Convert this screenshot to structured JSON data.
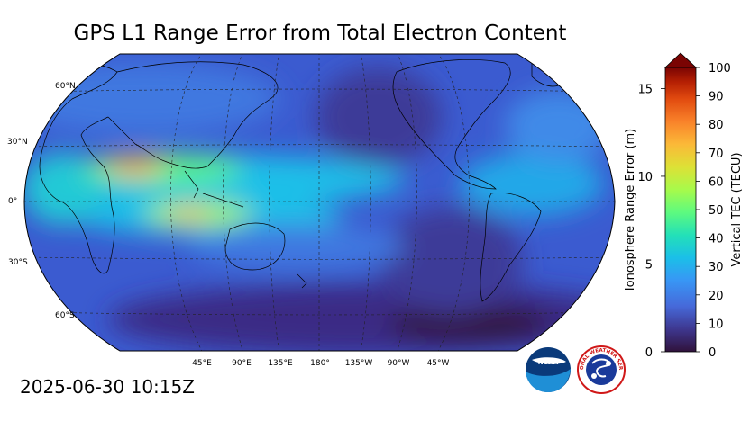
{
  "title": "GPS L1 Range Error from Total Electron Content",
  "timestamp": "2025-06-30 10:15Z",
  "lat_labels": [
    "60°N",
    "30°N",
    "0°",
    "30°S",
    "60°S"
  ],
  "lon_labels": [
    "45°E",
    "90°E",
    "135°E",
    "180°",
    "135°W",
    "90°W",
    "45°W"
  ],
  "colorbar": {
    "tec_label": "Vertical TEC (TECU)",
    "range_label": "Ionosphere Range Error (m)",
    "tec_ticks": [
      "0",
      "10",
      "20",
      "30",
      "40",
      "50",
      "60",
      "70",
      "80",
      "90",
      "100"
    ],
    "range_ticks": [
      "0",
      "5",
      "10",
      "15"
    ],
    "tec_max": 100,
    "range_max": 16.2,
    "colors": [
      "#30123b",
      "#3e378f",
      "#4669d9",
      "#3896f5",
      "#1bbfe8",
      "#23e0b8",
      "#5dfa7f",
      "#a7fa4b",
      "#dde136",
      "#fbb938",
      "#f9822a",
      "#e14a0f",
      "#b41f03",
      "#7a0403"
    ]
  },
  "logos": {
    "noaa_text": "NOAA",
    "nws_text": "NATIONAL WEATHER SERVICE"
  }
}
